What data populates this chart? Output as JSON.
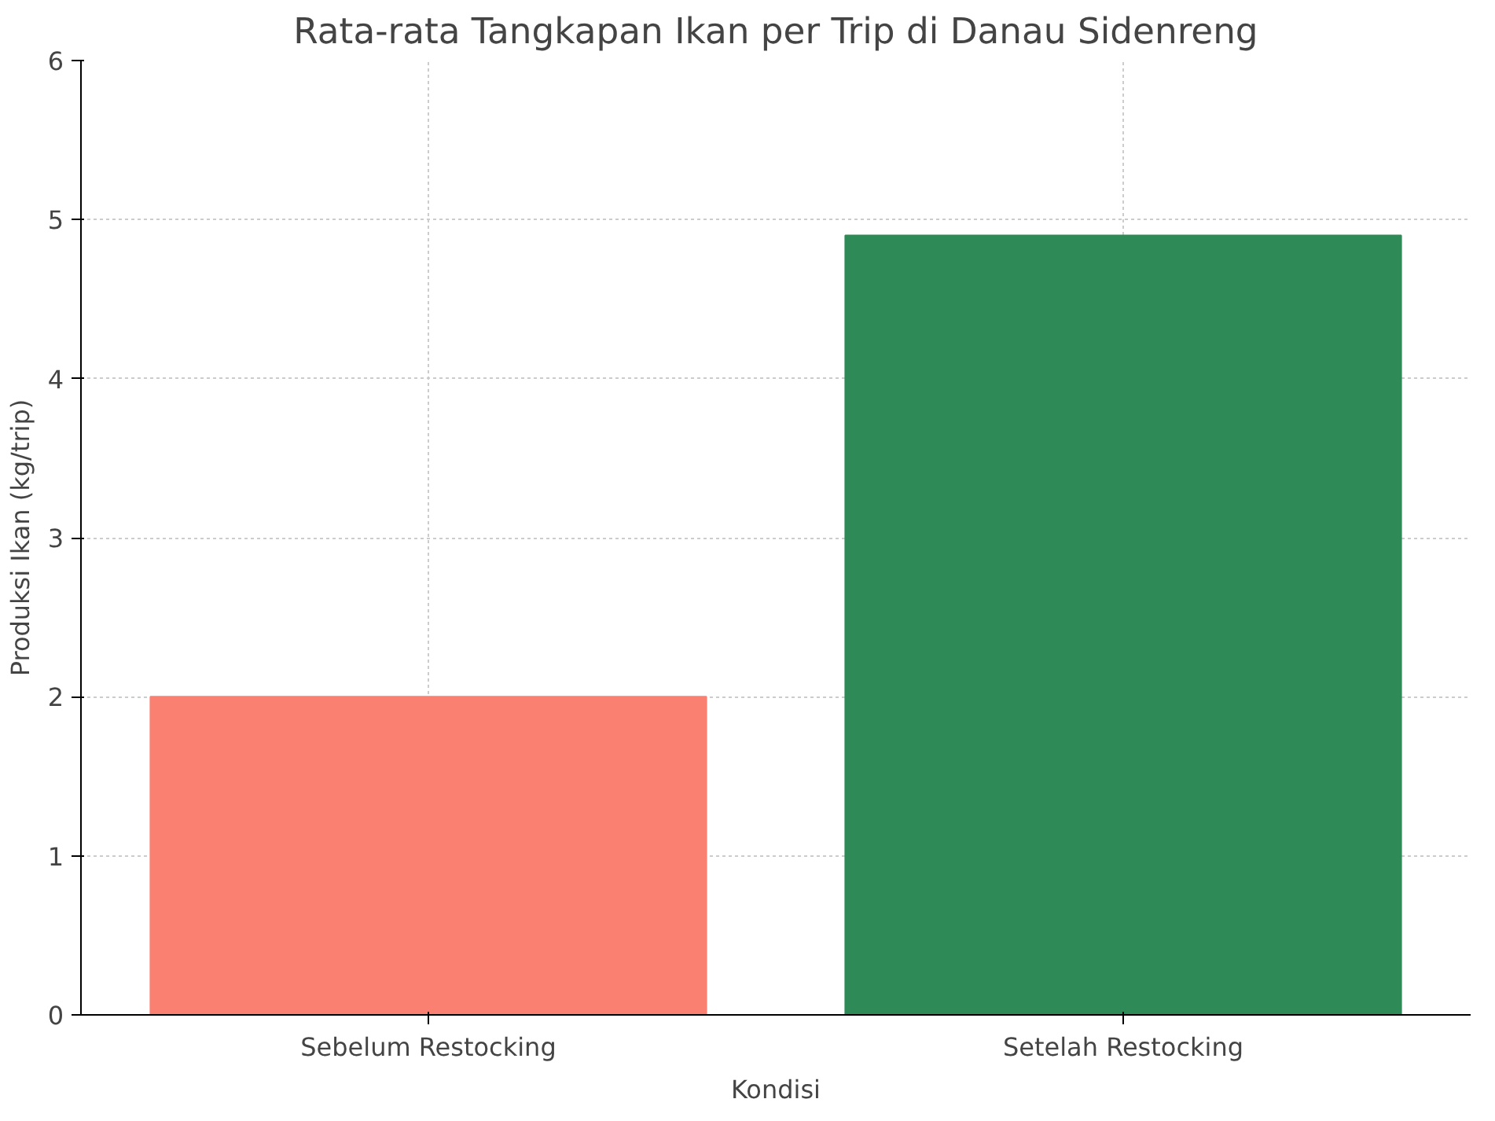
{
  "chart_data": {
    "type": "bar",
    "title": "Rata-rata Tangkapan Ikan per Trip di Danau Sidenreng",
    "xlabel": "Kondisi",
    "ylabel": "Produksi Ikan (kg/trip)",
    "categories": [
      "Sebelum Restocking",
      "Setelah Restocking"
    ],
    "values": [
      2.0,
      4.9
    ],
    "colors": [
      "#fa8072",
      "#2e8b57"
    ],
    "ylim": [
      0,
      6
    ],
    "yticks": [
      0,
      1,
      2,
      3,
      4,
      5,
      6
    ],
    "grid": true
  }
}
